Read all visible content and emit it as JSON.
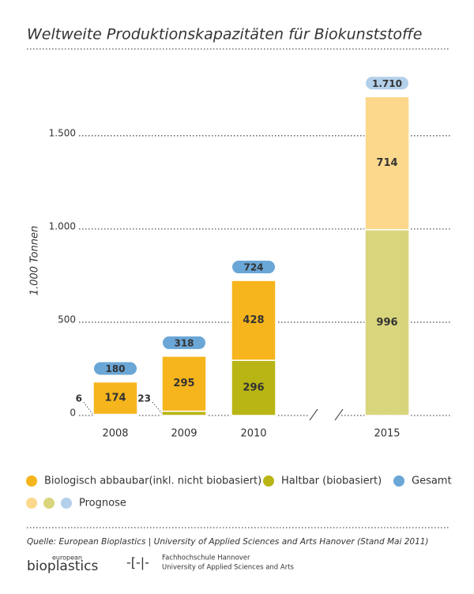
{
  "chart_data": {
    "type": "stacked-bar",
    "title": "Weltweite Produktionskapazitäten für Biokunststoffe",
    "y_label": "1.000 Tonnen",
    "categories": [
      "2008",
      "2009",
      "2010",
      "2015"
    ],
    "forecast": [
      false,
      false,
      false,
      true
    ],
    "forecast_label": "Prognose",
    "series": [
      {
        "name": "Haltbar (biobasiert)",
        "color": "#b9b514",
        "forecast_color": "#d9d57c",
        "values": [
          6,
          23,
          296,
          996
        ]
      },
      {
        "name": "Biologisch abbaubar(inkl. nicht biobasiert)",
        "color": "#f6b51d",
        "forecast_color": "#fcd88c",
        "values": [
          174,
          295,
          428,
          714
        ]
      }
    ],
    "totals": {
      "name": "Gesamt",
      "color": "#6aa6d6",
      "forecast_color": "#b3d0ea",
      "values": [
        180,
        318,
        724,
        1710
      ],
      "value_labels": [
        "180",
        "318",
        "724",
        "1.710"
      ]
    },
    "ylim": [
      0,
      1800
    ],
    "yticks": [
      0,
      500,
      {
        "value": 1000,
        "label": "1.000"
      },
      {
        "value": 1500,
        "label": "1.500"
      }
    ],
    "grid": true,
    "source": "Quelle: European Bioplastics | University of Applied Sciences and Arts Hanover (Stand Mai 2011)",
    "footer": [
      "european",
      "bioplastics",
      "Fachhochschule Hannover",
      "University of Applied Sciences and Arts"
    ]
  }
}
